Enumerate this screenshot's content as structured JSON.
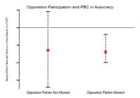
{
  "chart_data": {
    "type": "scatter",
    "title": "Opposition Participation and PBC in Autocracy",
    "y_label": "Marginal Effect of Autocratic Elections on Fiscal Balance (% of GDP)",
    "categories": [
      "Opposition Parties Not Allowed",
      "Opposition Parties Allowed"
    ],
    "values": [
      -1.3,
      -1.4
    ],
    "lower": [
      -3.4,
      -2.0
    ],
    "upper": [
      0.9,
      -0.4
    ],
    "color": "#d7301f",
    "reference_line": 0,
    "ylim": [
      -3.5,
      1
    ],
    "yticks": [
      -3,
      -2,
      -1,
      0,
      1
    ],
    "grid": false
  }
}
